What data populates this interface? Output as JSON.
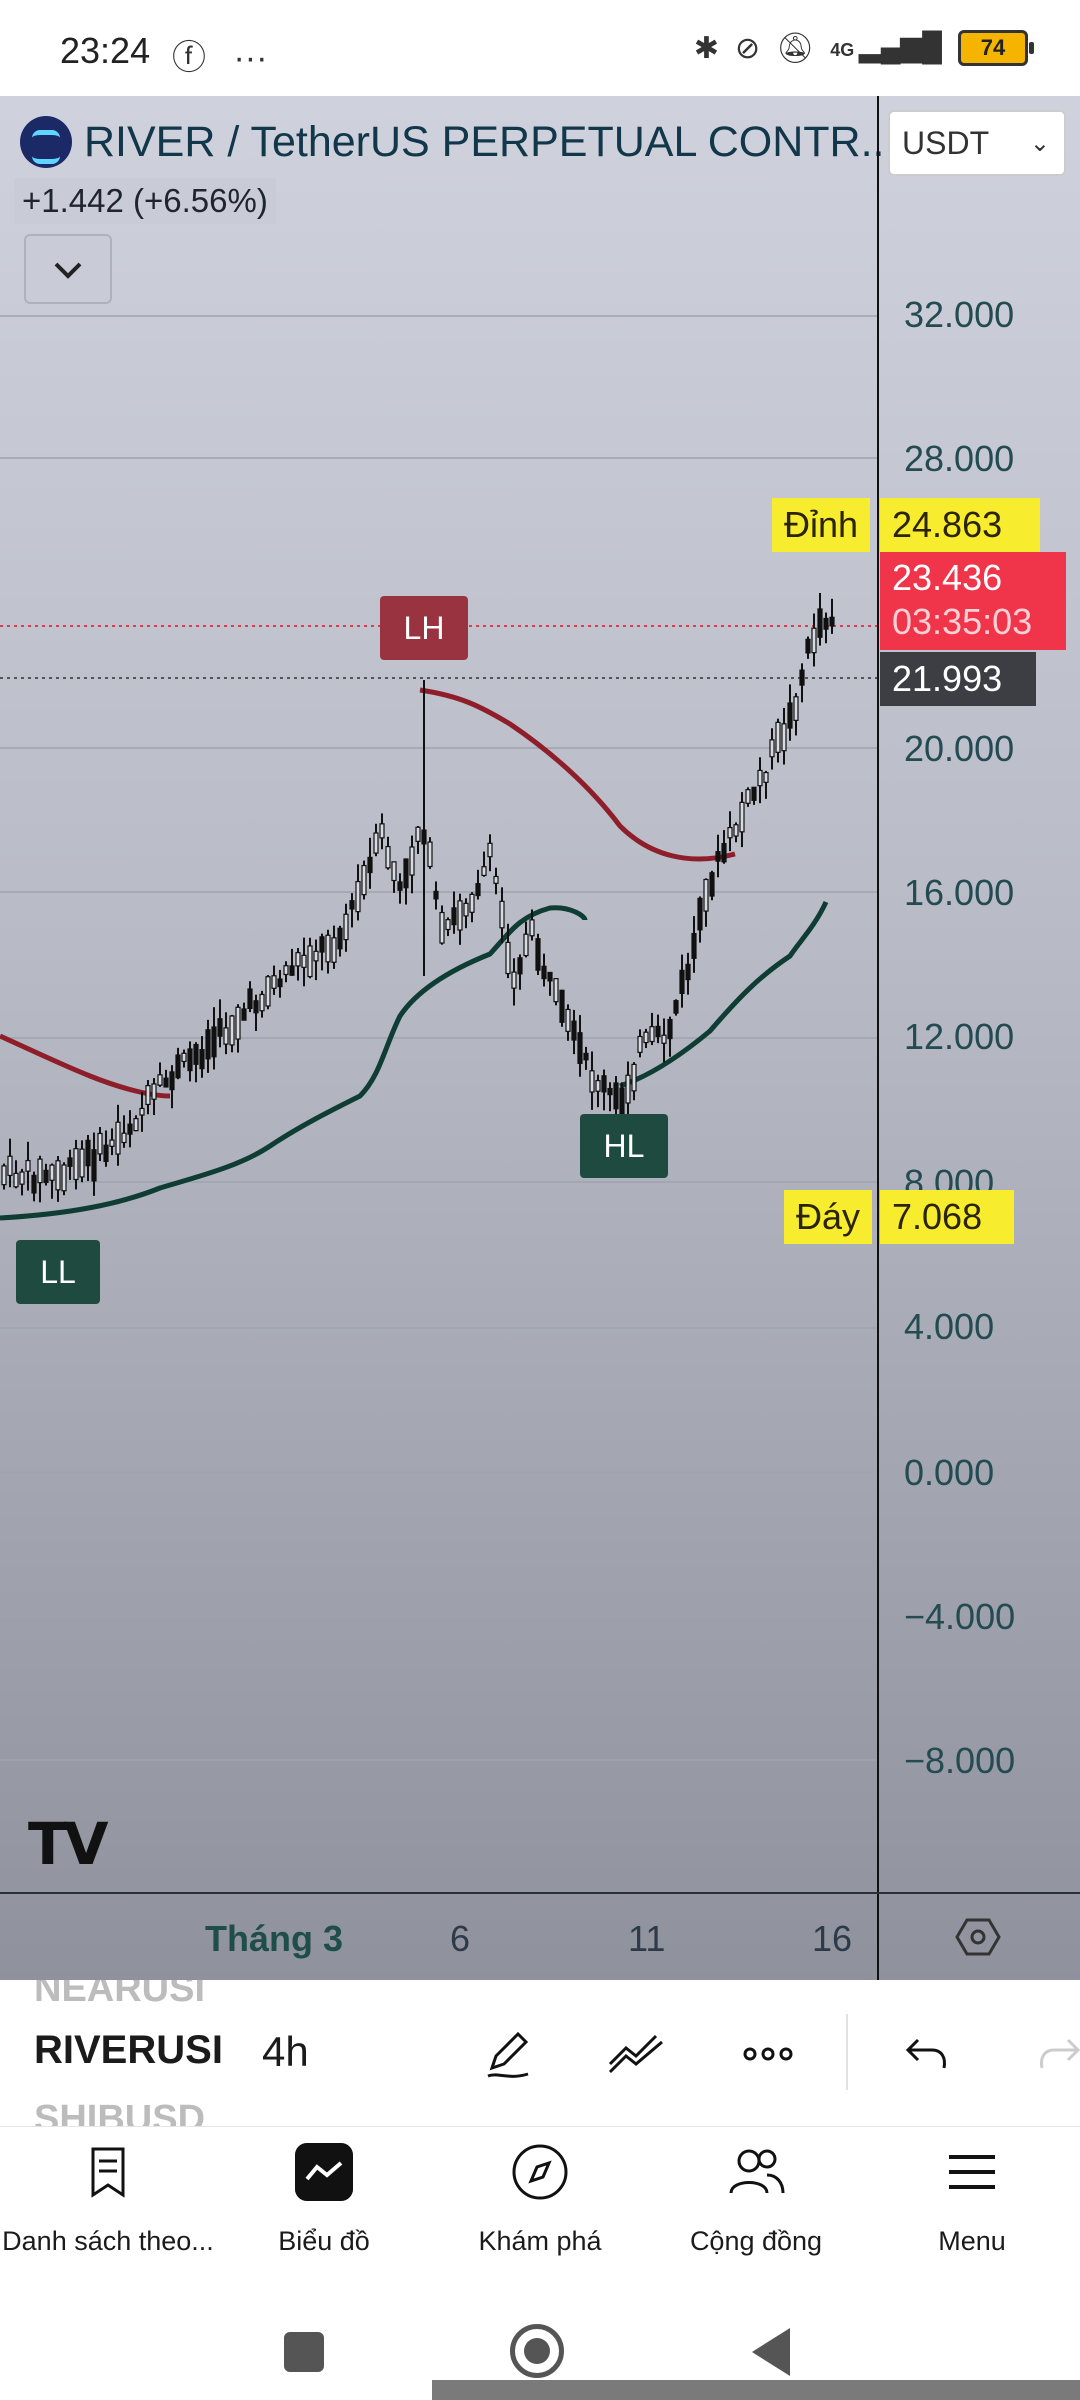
{
  "status_bar": {
    "time": "23:24",
    "left_icons": [
      "facebook-icon",
      "more-dots-icon"
    ],
    "right_icons": [
      "bluetooth-icon",
      "link-icon",
      "bell-off-icon",
      "signal-4g-icon"
    ],
    "network": "4G",
    "battery": "74"
  },
  "chart_header": {
    "symbol_title": "RIVER / TetherUS PERPETUAL CONTR...",
    "change": "+1.442 (+6.56%)",
    "currency": "USDT"
  },
  "price_axis": {
    "ticks": [
      "32.000",
      "28.000",
      "20.000",
      "16.000",
      "12.000",
      "8.000",
      "4.000",
      "0.000",
      "−4.000",
      "−8.000"
    ]
  },
  "tags": {
    "peak_label": "Đỉnh",
    "peak_value": "24.863",
    "last_price": "23.436",
    "countdown": "03:35:03",
    "line_value": "21.993",
    "bottom_label": "Đáy",
    "bottom_value": "7.068"
  },
  "pivots": {
    "lh": "LH",
    "hl": "HL",
    "ll": "LL"
  },
  "time_axis": {
    "ticks": [
      "Tháng 3",
      "6",
      "11",
      "16"
    ]
  },
  "colors": {
    "red_line": "#8e1f2a",
    "green_line": "#0f3d33",
    "tag_yellow": "#f7ec2e",
    "tag_red": "#f0344a"
  },
  "toolbar": {
    "symbol_prev": "NEARUSI",
    "symbol": "RIVERUSI",
    "symbol_next": "SHIBUSD",
    "interval": "4h",
    "icons": [
      "pen-icon",
      "indicators-icon",
      "more-icon",
      "undo-icon",
      "redo-icon"
    ]
  },
  "nav": {
    "items": [
      {
        "label": "Danh sách theo...",
        "icon": "bookmark-list-icon"
      },
      {
        "label": "Biểu đồ",
        "icon": "chart-icon"
      },
      {
        "label": "Khám phá",
        "icon": "compass-icon"
      },
      {
        "label": "Cộng đồng",
        "icon": "people-icon"
      },
      {
        "label": "Menu",
        "icon": "hamburger-icon"
      }
    ]
  }
}
